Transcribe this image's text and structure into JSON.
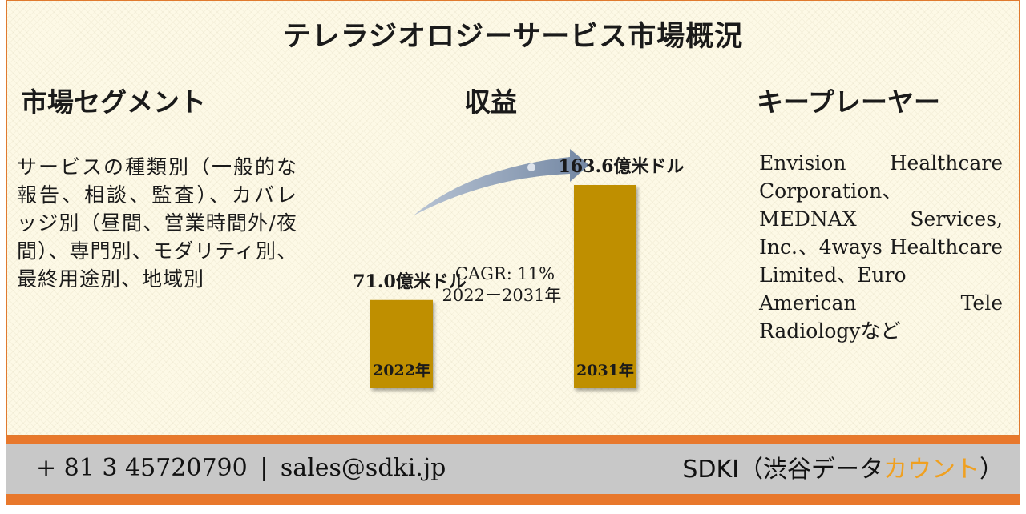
{
  "title": "テレラジオロジーサービス市場概況",
  "sections": {
    "segment": {
      "heading": "市場セグメント",
      "text": "サービスの種類別（一般的な報告、相談、監査）、カバレッジ別（昼間、営業時間外/夜間）、専門別、モダリティ別、最終用途別、地域別"
    },
    "revenue": {
      "heading": "収益"
    },
    "key_players": {
      "heading": "キープレーヤー",
      "lines": [
        "Envision Healthcare",
        "Corporation、",
        "MEDNAX Services,",
        "Inc.、4ways Healthcare",
        "Limited、Euro",
        "American Tele",
        "Radiologyなど"
      ]
    }
  },
  "chart_data": {
    "type": "bar",
    "categories": [
      "2022年",
      "2031年"
    ],
    "values": [
      71.0,
      163.6
    ],
    "value_labels": [
      "71.0億米ドル",
      "163.6億米ドル"
    ],
    "unit": "億米ドル",
    "annotation": {
      "line1": "CAGR: 11%",
      "line2": "2022ー2031年"
    },
    "bar_color": "#bf8f00",
    "arrow_color": "#8597b0"
  },
  "footer": {
    "phone": "+ 81 3 45720790",
    "separator": "|",
    "email": "sales@sdki.jp",
    "brand_prefix": "SDKI（渋谷データ",
    "brand_highlight": "カウント",
    "brand_suffix": "）"
  }
}
